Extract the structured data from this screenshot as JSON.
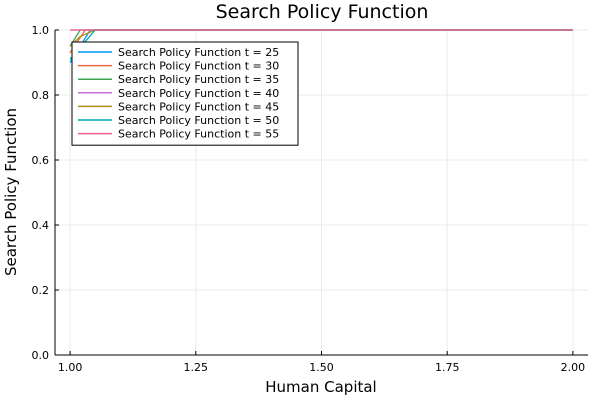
{
  "chart_data": {
    "type": "line",
    "title": "Search Policy Function",
    "xlabel": "Human Capital",
    "ylabel": "Search Policy Function",
    "xlim": [
      0.97,
      2.03
    ],
    "ylim": [
      0,
      1
    ],
    "grid": true,
    "legend_position": "top-left",
    "x_ticks": [
      1.0,
      1.25,
      1.5,
      1.75,
      2.0
    ],
    "x_tick_labels": [
      "1.00",
      "1.25",
      "1.50",
      "1.75",
      "2.00"
    ],
    "y_ticks": [
      0,
      0.2,
      0.4,
      0.6,
      0.8,
      1.0
    ],
    "y_tick_labels": [
      "0.0",
      "0.2",
      "0.4",
      "0.6",
      "0.8",
      "1.0"
    ],
    "series": [
      {
        "name": "Search Policy Function t = 25",
        "color": "#009af9",
        "x": [
          1.0,
          1.04,
          2.0
        ],
        "y": [
          0.9,
          1.0,
          1.0
        ]
      },
      {
        "name": "Search Policy Function t = 30",
        "color": "#e26f46",
        "x": [
          1.0,
          1.03,
          2.0
        ],
        "y": [
          0.93,
          1.0,
          1.0
        ]
      },
      {
        "name": "Search Policy Function t = 35",
        "color": "#3da44d",
        "x": [
          1.0,
          1.02,
          2.0
        ],
        "y": [
          0.95,
          1.0,
          1.0
        ]
      },
      {
        "name": "Search Policy Function t = 40",
        "color": "#c271d2",
        "x": [
          1.0,
          2.0
        ],
        "y": [
          1.0,
          1.0
        ]
      },
      {
        "name": "Search Policy Function t = 45",
        "color": "#ac8d18",
        "x": [
          1.0,
          1.02,
          1.05,
          2.0
        ],
        "y": [
          0.95,
          0.98,
          1.0,
          1.0
        ]
      },
      {
        "name": "Search Policy Function t = 50",
        "color": "#00a9ad",
        "x": [
          1.0,
          1.05,
          2.0
        ],
        "y": [
          0.91,
          1.0,
          1.0
        ]
      },
      {
        "name": "Search Policy Function t = 55",
        "color": "#ed5e93",
        "x": [
          1.0,
          2.0
        ],
        "y": [
          1.0,
          1.0
        ]
      }
    ]
  }
}
